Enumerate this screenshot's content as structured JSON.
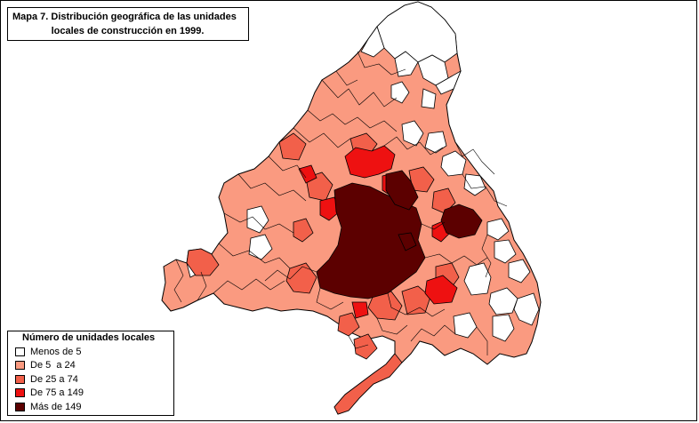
{
  "title": {
    "line1": "Mapa 7. Distribución geográfica de las unidades",
    "line2": "locales de construcción en 1999."
  },
  "legend": {
    "title": "Número de unidades locales",
    "items": [
      {
        "label": "Menos de 5",
        "color": "#ffffff"
      },
      {
        "label": "De 5  a 24",
        "color": "#fa9a80"
      },
      {
        "label": "De 25 a 74",
        "color": "#f2604a"
      },
      {
        "label": "De 75 a 149",
        "color": "#ee1111"
      },
      {
        "label": "Más de 149",
        "color": "#5c0000"
      }
    ]
  },
  "map": {
    "region": "Comunidad de Madrid",
    "border_color": "#000000"
  }
}
